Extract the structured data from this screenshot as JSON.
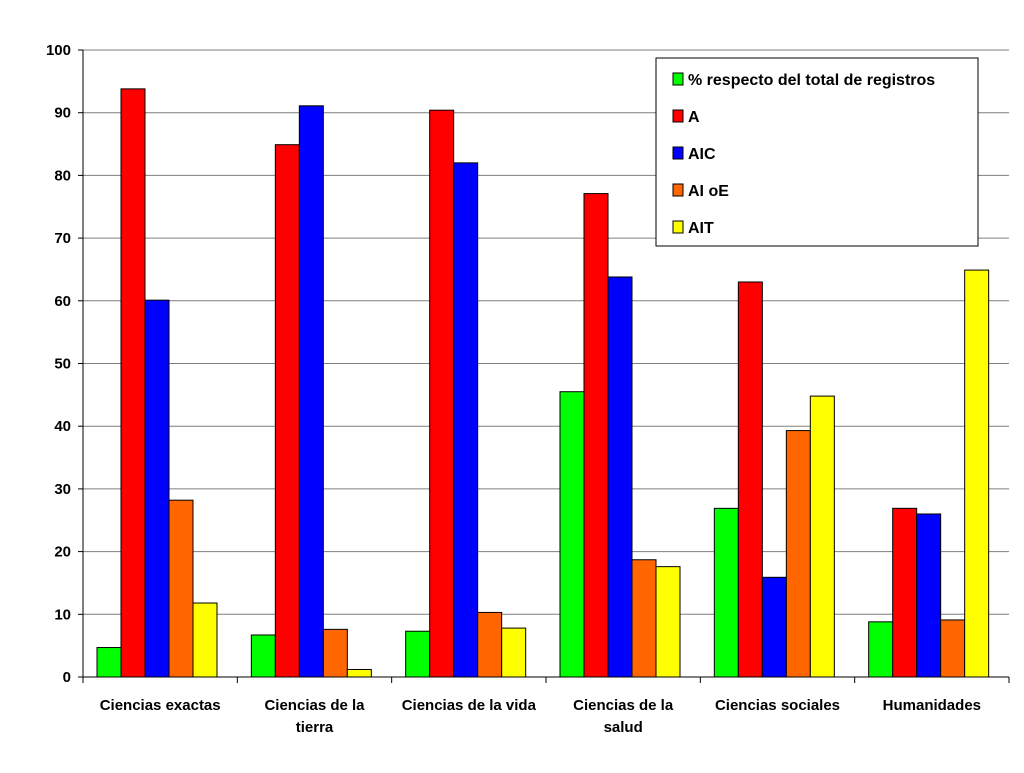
{
  "chart_data": {
    "type": "bar",
    "title": "",
    "xlabel": "",
    "ylabel": "",
    "ylim": [
      0,
      100
    ],
    "yticks": [
      0,
      10,
      20,
      30,
      40,
      50,
      60,
      70,
      80,
      90,
      100
    ],
    "grid": true,
    "legend_position": "top-right",
    "categories": [
      [
        "Ciencias exactas"
      ],
      [
        "Ciencias de la",
        "tierra"
      ],
      [
        "Ciencias de la vida"
      ],
      [
        "Ciencias de la",
        "salud"
      ],
      [
        "Ciencias sociales"
      ],
      [
        "Humanidades"
      ]
    ],
    "series": [
      {
        "name": "% respecto del total de registros",
        "color": "#00ff00",
        "values": [
          4.7,
          6.7,
          7.3,
          45.5,
          26.9,
          8.8
        ]
      },
      {
        "name": "A",
        "color": "#ff0000",
        "values": [
          93.8,
          84.9,
          90.4,
          77.1,
          63.0,
          26.9
        ]
      },
      {
        "name": "AIC",
        "color": "#0000ff",
        "values": [
          60.1,
          91.1,
          82.0,
          63.8,
          15.9,
          26.0
        ]
      },
      {
        "name": "AI oE",
        "color": "#ff6600",
        "values": [
          28.2,
          7.6,
          10.3,
          18.7,
          39.3,
          9.1
        ]
      },
      {
        "name": "AIT",
        "color": "#ffff00",
        "values": [
          11.8,
          1.2,
          7.8,
          17.6,
          44.8,
          64.9
        ]
      }
    ]
  }
}
